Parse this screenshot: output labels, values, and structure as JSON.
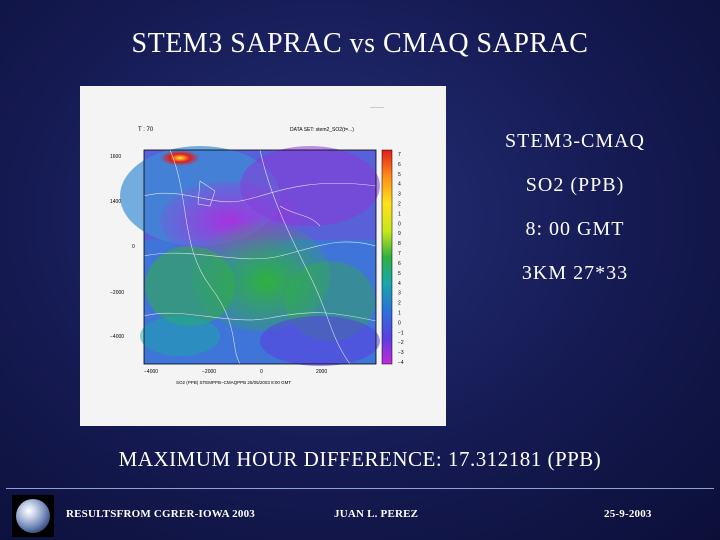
{
  "slide": {
    "title": "STEM3 SAPRAC vs CMAQ SAPRAC",
    "info_lines": [
      "STEM3-CMAQ",
      "SO2 (PPB)",
      "8: 00 GMT",
      "3KM 27*33"
    ],
    "max_difference": "MAXIMUM HOUR DIFFERENCE: 17.312181   (PPB)",
    "footer": {
      "left": "RESULTSFROM CGRER-IOWA 2003",
      "middle": "JUAN L. PEREZ",
      "right": "25-9-2003"
    },
    "logo_icon": "globe-icon"
  },
  "figure": {
    "header_left": "T : 70",
    "header_right": "DATA SET: stem2_SO2(t=...)",
    "y_ticks": [
      "1600",
      "1400",
      "0",
      "−2000",
      "−4000"
    ],
    "x_ticks": [
      "−4000",
      "−2000",
      "0",
      "2000"
    ],
    "colorbar_labels": [
      "7",
      "6",
      "5",
      "4",
      "3",
      "2",
      "1",
      "0",
      "9",
      "8",
      "7",
      "6",
      "5",
      "4",
      "3",
      "2",
      "1",
      "0",
      "−1",
      "−2",
      "−3",
      "−4"
    ],
    "caption": "SO2 (PPB) STEMPPB−CMAQPPB 25/05/2003 8:00 GMT",
    "colors": {
      "low": "#7a2bd6",
      "mid_low": "#3f74d8",
      "mid": "#1fa84a",
      "high": "#ffd21a",
      "max": "#e01c1c"
    }
  }
}
